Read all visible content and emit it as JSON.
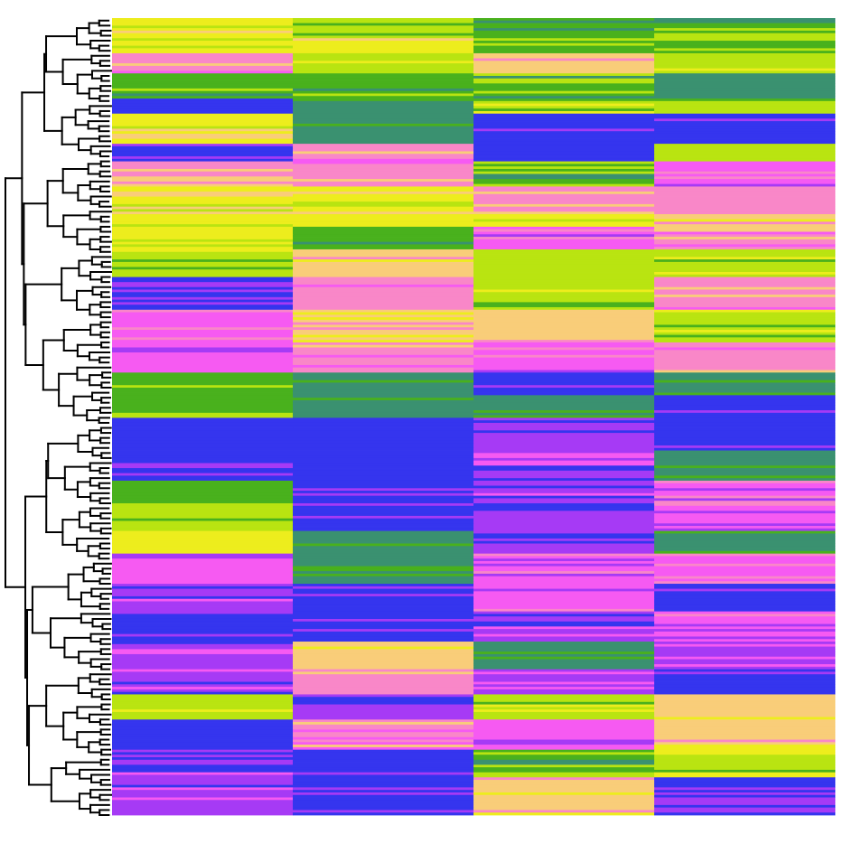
{
  "chart_data": {
    "type": "heatmap",
    "title": "",
    "xlabel": "",
    "ylabel": "",
    "legend": "none",
    "grid": false,
    "dendrogram": "rows-left",
    "columns": [
      "",
      "",
      "",
      ""
    ],
    "colors": {
      "blue": "#3535ee",
      "violet": "#a63af5",
      "magenta": "#f65af2",
      "pink": "#f987c8",
      "peach": "#f9cd79",
      "yellow": "#eded1d",
      "lime": "#b9e411",
      "green": "#49b11d",
      "teal": "#3a9170"
    },
    "row_blocks": [
      {
        "rows": 8,
        "values": [
          "yellow",
          "lime",
          "green",
          "green"
        ]
      },
      {
        "rows": 6,
        "values": [
          "yellow",
          "yellow",
          "green",
          "green"
        ]
      },
      {
        "rows": 8,
        "values": [
          "pink",
          "lime",
          "peach",
          "lime"
        ]
      },
      {
        "rows": 10,
        "values": [
          "green",
          "green",
          "green",
          "teal"
        ]
      },
      {
        "rows": 6,
        "values": [
          "blue",
          "teal",
          "lime",
          "lime"
        ]
      },
      {
        "rows": 12,
        "values": [
          "yellow",
          "teal",
          "blue",
          "blue"
        ]
      },
      {
        "rows": 7,
        "values": [
          "blue",
          "pink",
          "blue",
          "lime"
        ]
      },
      {
        "rows": 10,
        "values": [
          "pink",
          "pink",
          "green",
          "magenta"
        ]
      },
      {
        "rows": 10,
        "values": [
          "yellow",
          "yellow",
          "pink",
          "pink"
        ]
      },
      {
        "rows": 6,
        "values": [
          "yellow",
          "yellow",
          "yellow",
          "peach"
        ]
      },
      {
        "rows": 9,
        "values": [
          "yellow",
          "green",
          "magenta",
          "pink"
        ]
      },
      {
        "rows": 11,
        "values": [
          "lime",
          "peach",
          "lime",
          "lime"
        ]
      },
      {
        "rows": 13,
        "values": [
          "blue",
          "pink",
          "lime",
          "pink"
        ]
      },
      {
        "rows": 13,
        "values": [
          "magenta",
          "peach",
          "peach",
          "lime"
        ]
      },
      {
        "rows": 12,
        "values": [
          "magenta",
          "pink",
          "magenta",
          "pink"
        ]
      },
      {
        "rows": 9,
        "values": [
          "green",
          "teal",
          "blue",
          "teal"
        ]
      },
      {
        "rows": 9,
        "values": [
          "green",
          "teal",
          "teal",
          "blue"
        ]
      },
      {
        "rows": 13,
        "values": [
          "blue",
          "blue",
          "violet",
          "blue"
        ]
      },
      {
        "rows": 12,
        "values": [
          "blue",
          "blue",
          "violet",
          "teal"
        ]
      },
      {
        "rows": 10,
        "values": [
          "green",
          "blue",
          "violet",
          "magenta"
        ]
      },
      {
        "rows": 10,
        "values": [
          "lime",
          "blue",
          "violet",
          "magenta"
        ]
      },
      {
        "rows": 9,
        "values": [
          "yellow",
          "teal",
          "violet",
          "teal"
        ]
      },
      {
        "rows": 12,
        "values": [
          "magenta",
          "teal",
          "magenta",
          "magenta"
        ]
      },
      {
        "rows": 11,
        "values": [
          "violet",
          "blue",
          "magenta",
          "blue"
        ]
      },
      {
        "rows": 12,
        "values": [
          "blue",
          "blue",
          "violet",
          "magenta"
        ]
      },
      {
        "rows": 11,
        "values": [
          "violet",
          "peach",
          "teal",
          "violet"
        ]
      },
      {
        "rows": 10,
        "values": [
          "violet",
          "pink",
          "violet",
          "blue"
        ]
      },
      {
        "rows": 10,
        "values": [
          "lime",
          "violet",
          "lime",
          "peach"
        ]
      },
      {
        "rows": 12,
        "values": [
          "blue",
          "pink",
          "magenta",
          "peach"
        ]
      },
      {
        "rows": 11,
        "values": [
          "violet",
          "blue",
          "green",
          "lime"
        ]
      },
      {
        "rows": 9,
        "values": [
          "violet",
          "blue",
          "peach",
          "blue"
        ]
      },
      {
        "rows": 6,
        "values": [
          "violet",
          "blue",
          "peach",
          "violet"
        ]
      }
    ]
  }
}
